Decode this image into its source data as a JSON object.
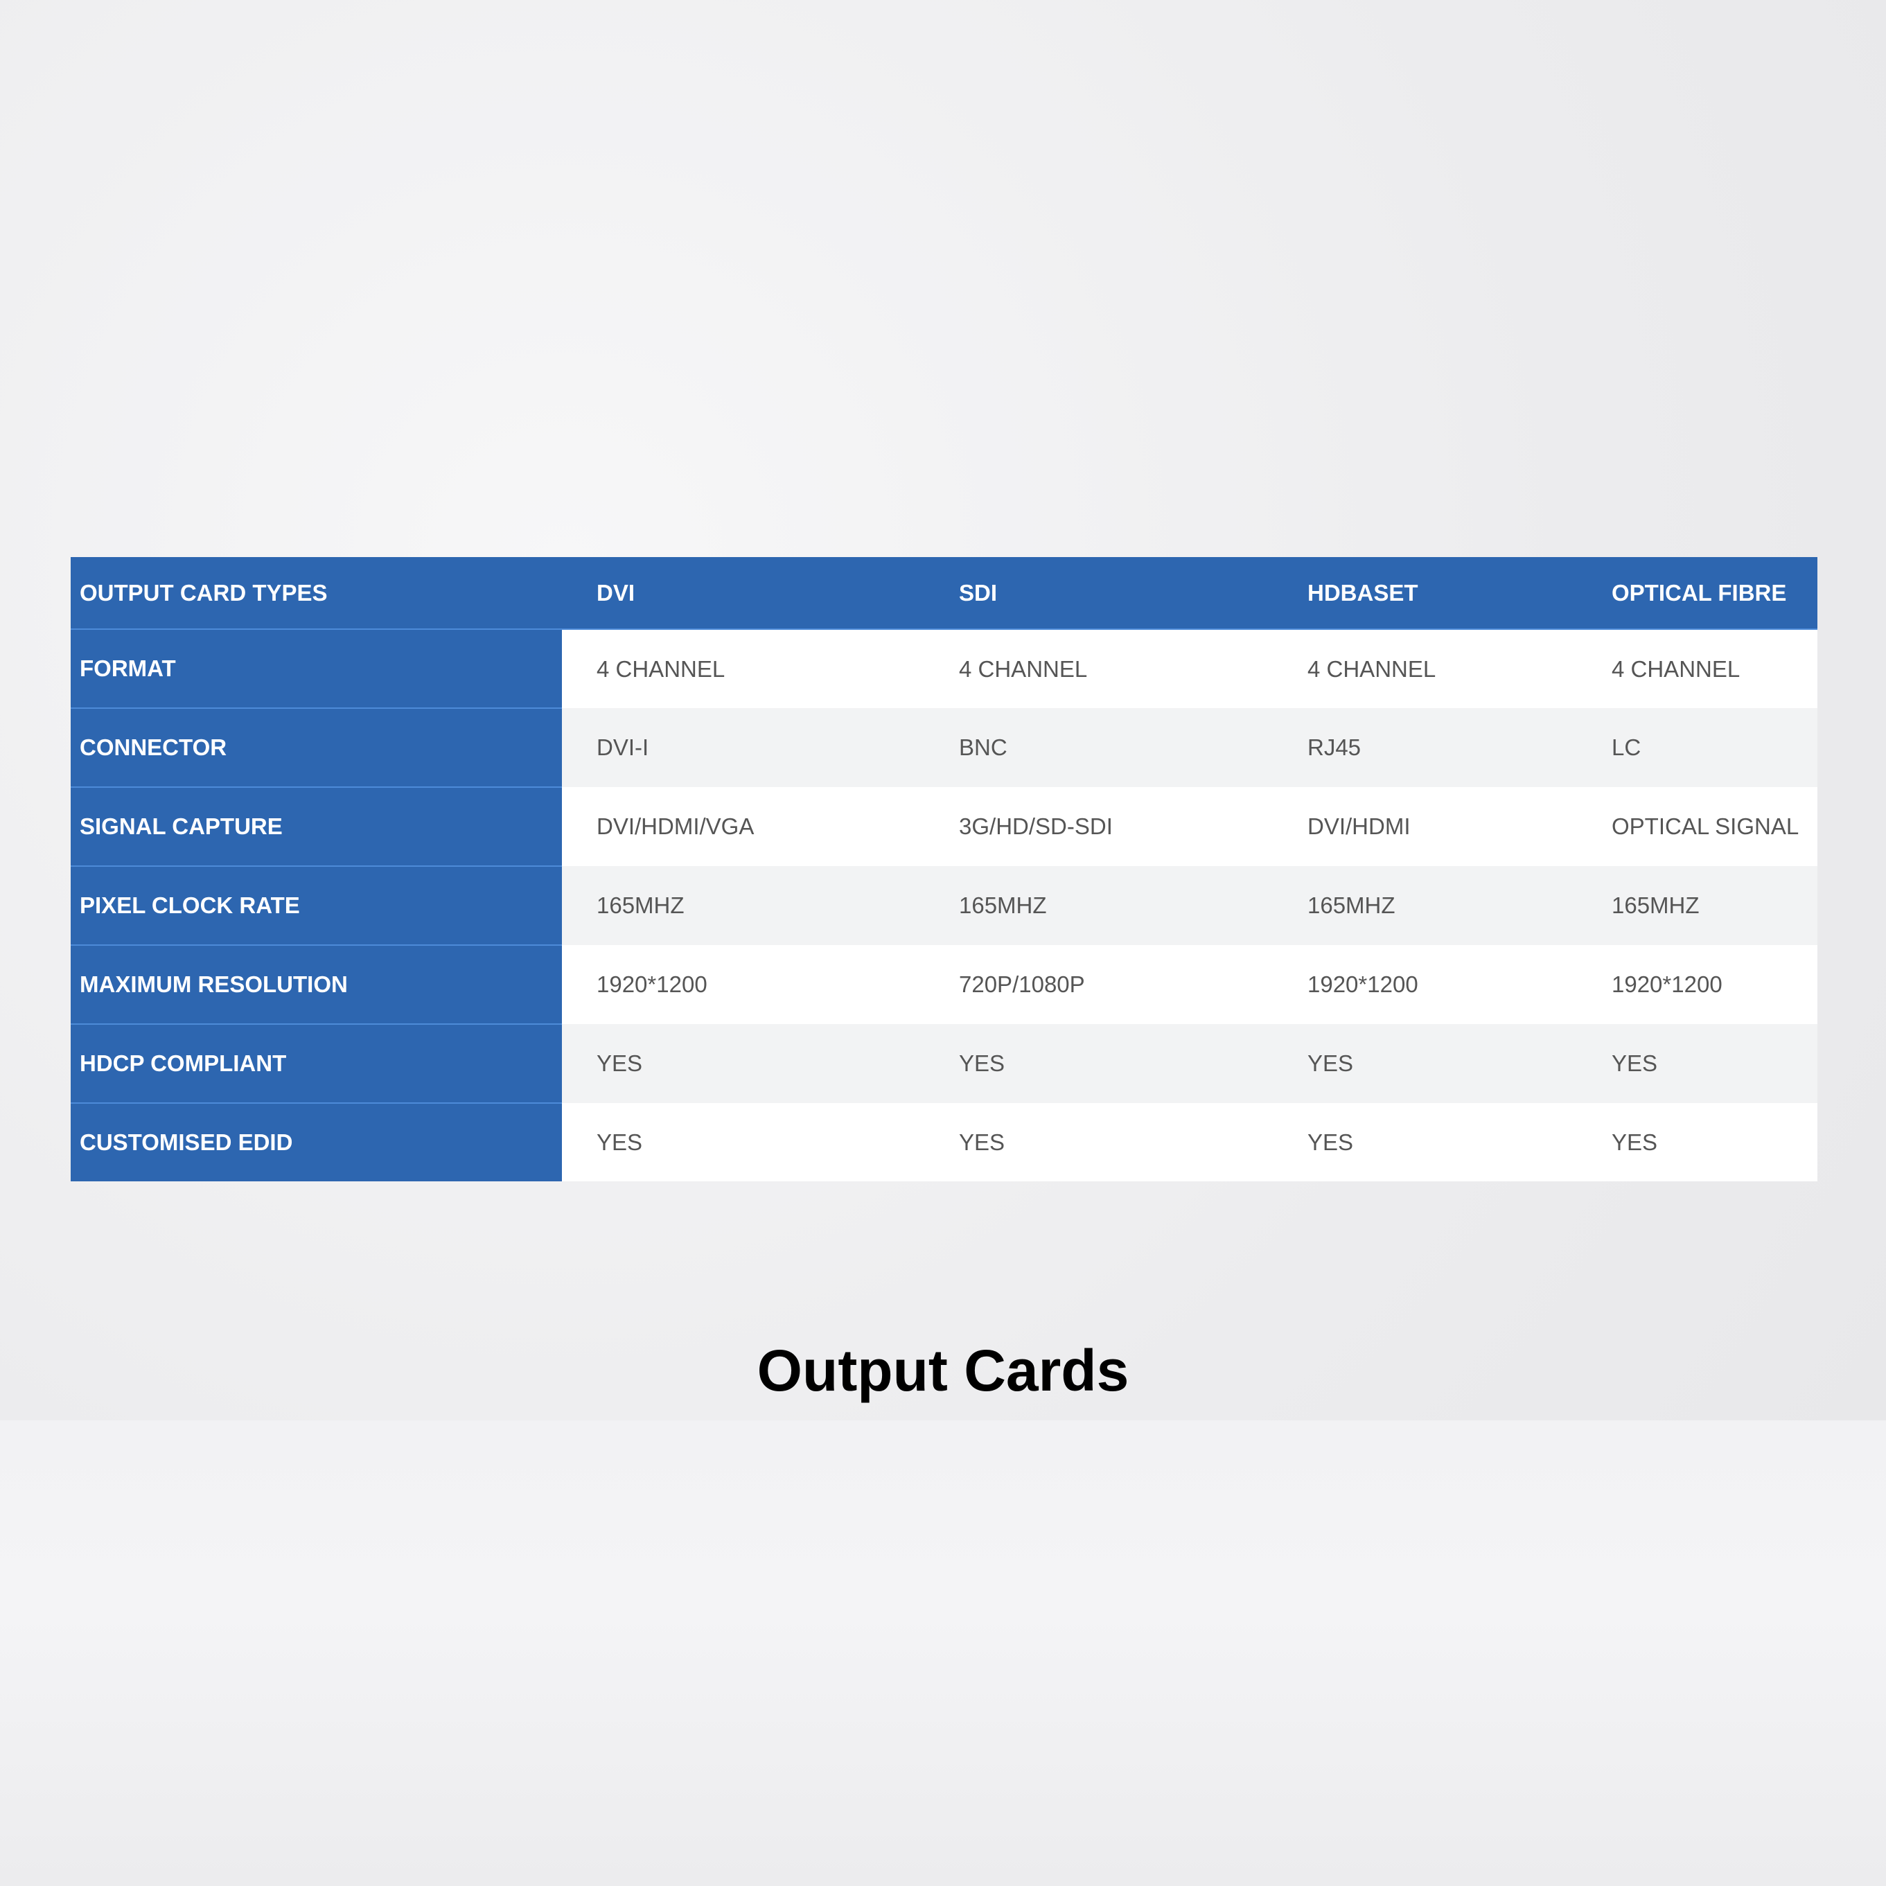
{
  "table": {
    "headers": [
      "OUTPUT CARD TYPES",
      "DVI",
      "SDI",
      "HDBASET",
      "OPTICAL FIBRE"
    ],
    "rows": [
      {
        "label": "FORMAT",
        "values": [
          "4 CHANNEL",
          "4 CHANNEL",
          "4 CHANNEL",
          "4 CHANNEL"
        ]
      },
      {
        "label": "CONNECTOR",
        "values": [
          "DVI-I",
          "BNC",
          "RJ45",
          "LC"
        ]
      },
      {
        "label": "SIGNAL CAPTURE",
        "values": [
          "DVI/HDMI/VGA",
          "3G/HD/SD-SDI",
          "DVI/HDMI",
          "OPTICAL SIGNAL"
        ]
      },
      {
        "label": "PIXEL CLOCK RATE",
        "values": [
          "165MHZ",
          "165MHZ",
          "165MHZ",
          "165MHZ"
        ]
      },
      {
        "label": "MAXIMUM RESOLUTION",
        "values": [
          "1920*1200",
          "720P/1080P",
          "1920*1200",
          "1920*1200"
        ]
      },
      {
        "label": "HDCP COMPLIANT",
        "values": [
          "YES",
          "YES",
          "YES",
          "YES"
        ]
      },
      {
        "label": "CUSTOMISED EDID",
        "values": [
          "YES",
          "YES",
          "YES",
          "YES"
        ]
      }
    ]
  },
  "title": "Output Cards",
  "colors": {
    "header_blue": "#2d66b0",
    "row_alt": "#f2f3f4"
  }
}
